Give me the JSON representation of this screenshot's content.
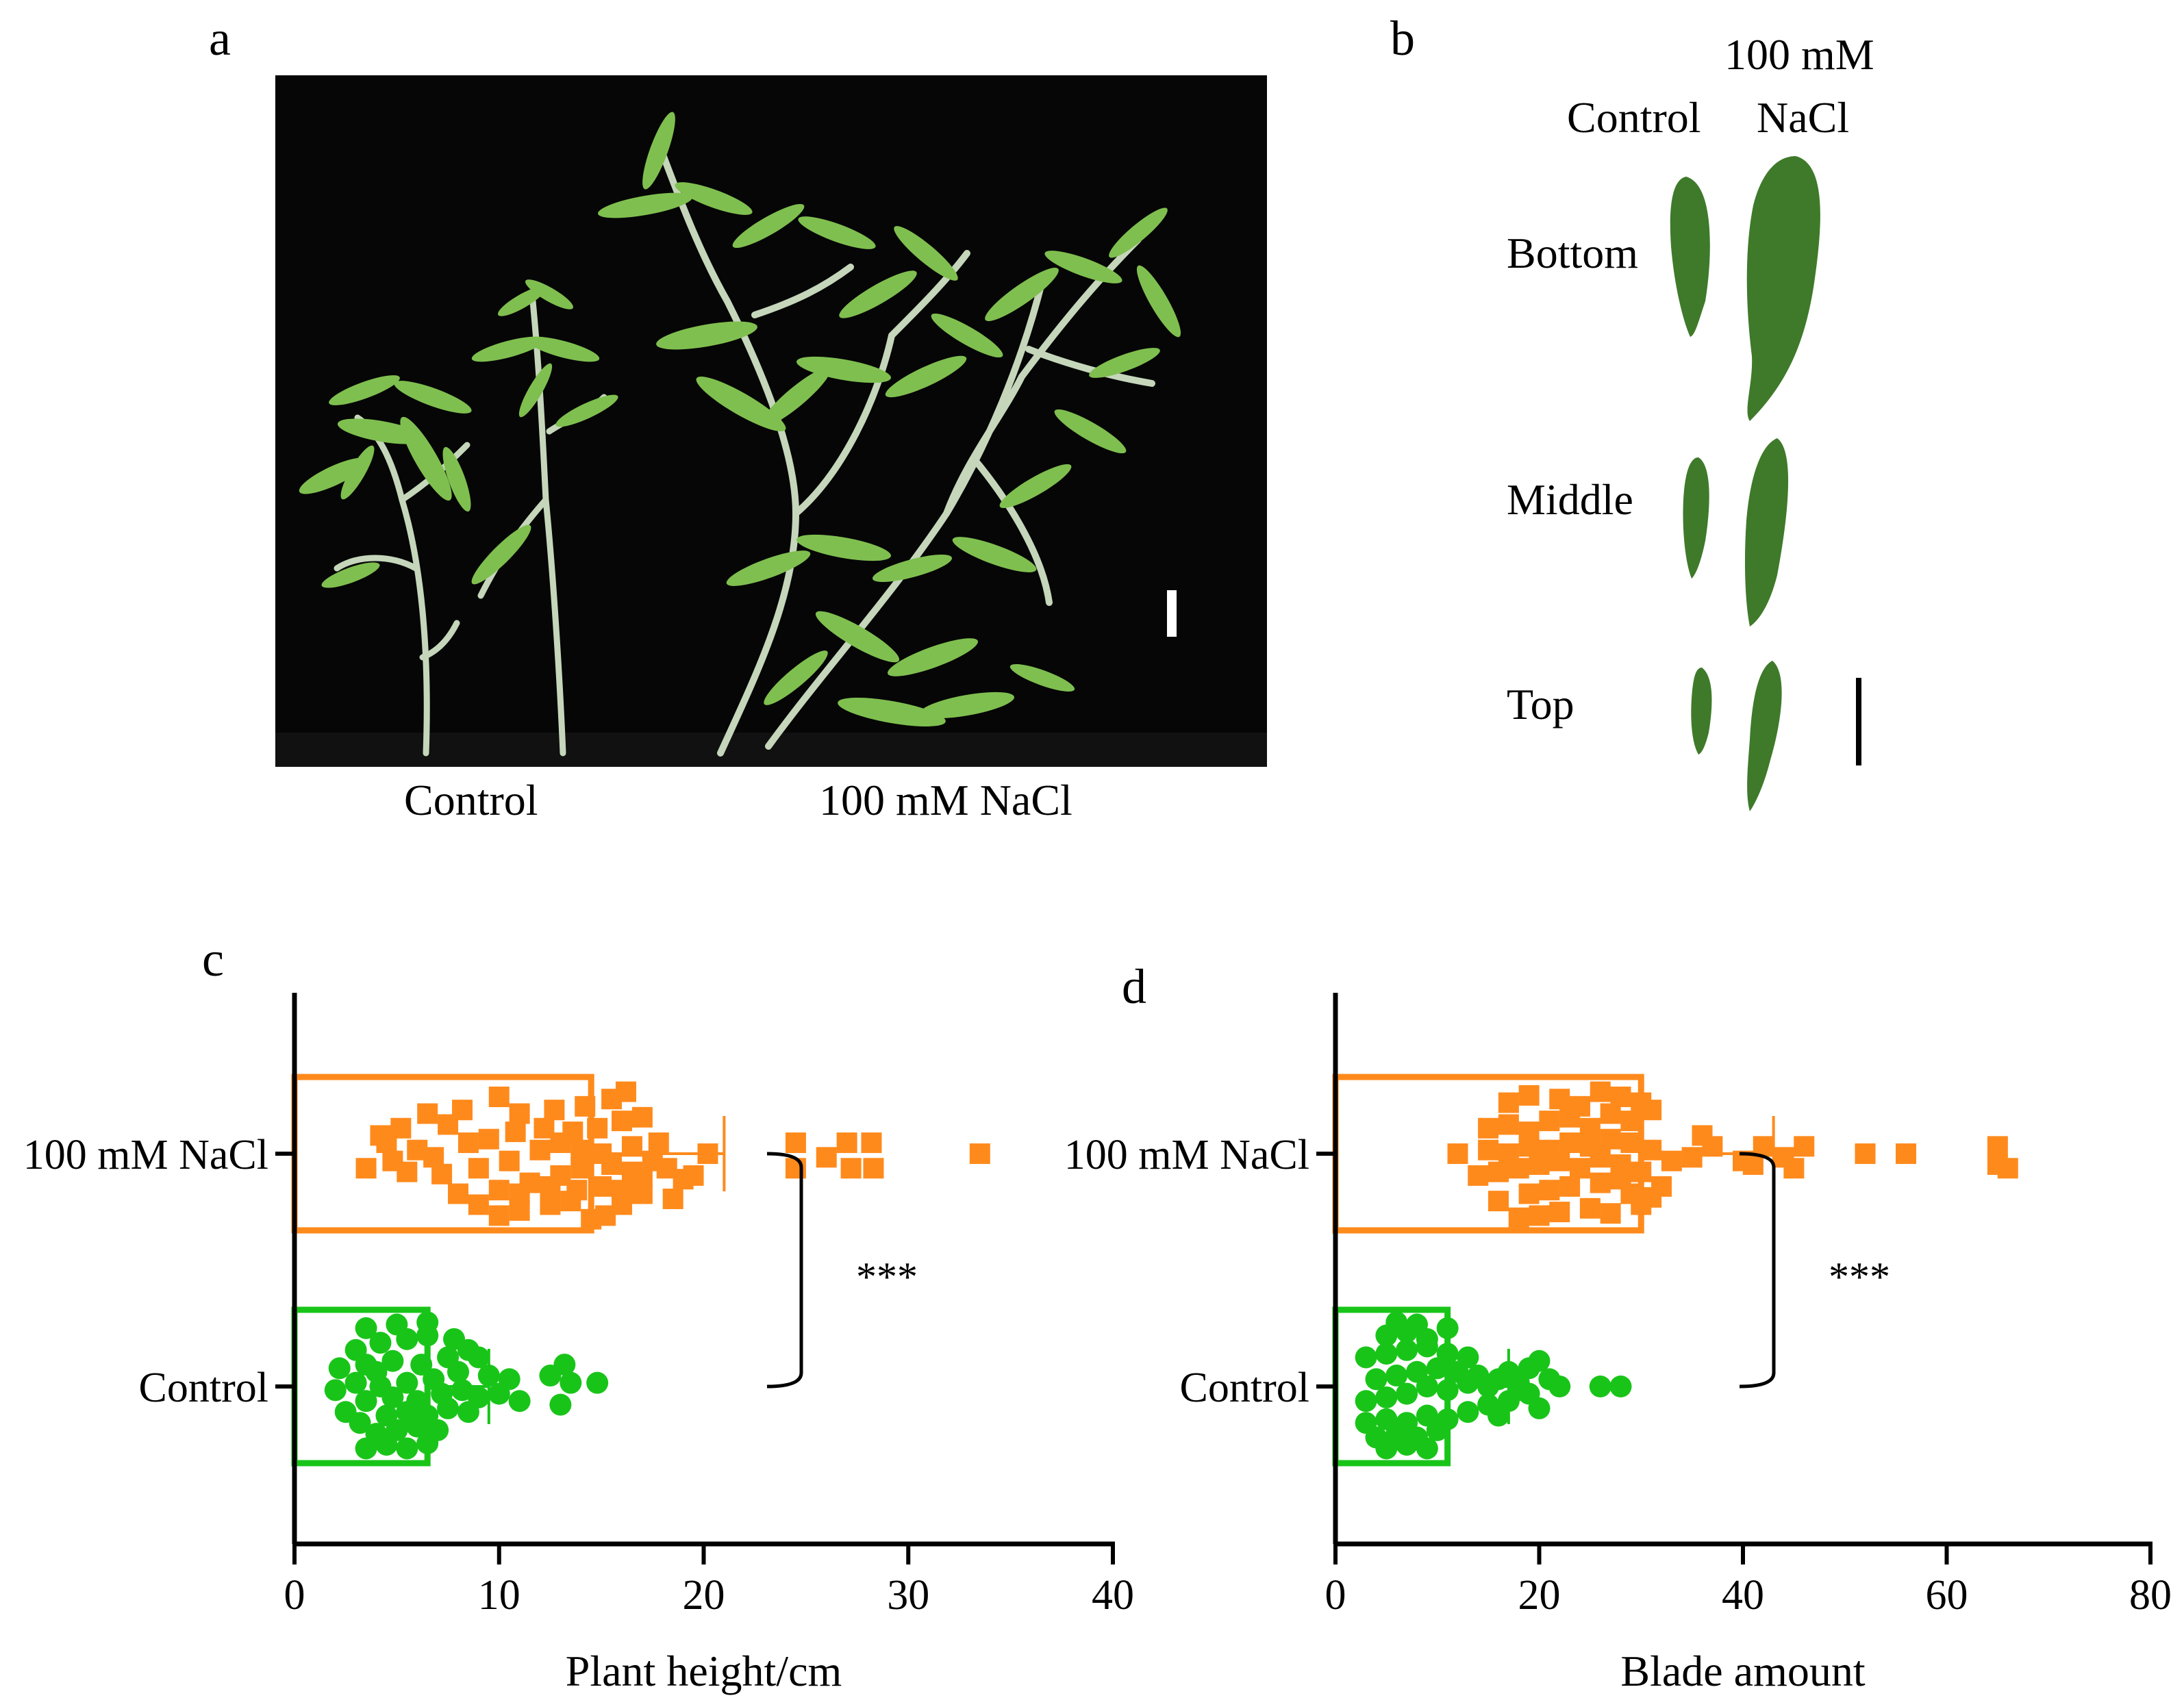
{
  "panels": {
    "a": {
      "letter": "a",
      "x_labels": [
        "Control",
        "100 mM NaCl"
      ]
    },
    "b": {
      "letter": "b",
      "col_labels": {
        "control": "Control",
        "nacl_line1": "100 mM",
        "nacl_line2": "NaCl"
      },
      "row_labels": [
        "Bottom",
        "Middle",
        "Top"
      ]
    },
    "c": {
      "letter": "c",
      "significance": "***"
    },
    "d": {
      "letter": "d",
      "significance": "***"
    }
  },
  "colors": {
    "nacl": "#ff8a1c",
    "control": "#19c419",
    "leaf_dark": "#3f7a2a",
    "stem": "#b9cdb1"
  },
  "chart_data": [
    {
      "type": "bar",
      "orientation": "horizontal",
      "xlabel": "Plant height/cm",
      "xlim": [
        0,
        40
      ],
      "xticks": [
        0,
        10,
        20,
        30,
        40
      ],
      "categories": [
        "100 mM NaCl",
        "Control"
      ],
      "series": [
        {
          "name": "100 mM NaCl",
          "mean": 14.5,
          "sd": 6.5,
          "points": [
            [
              10,
              0.85
            ],
            [
              11,
              0.78
            ],
            [
              12.5,
              0.7
            ],
            [
              13.5,
              0.65
            ],
            [
              14.5,
              0.9
            ],
            [
              15.2,
              0.85
            ],
            [
              16,
              0.7
            ],
            [
              17,
              0.55
            ],
            [
              18.5,
              0.62
            ],
            [
              19,
              0.35
            ],
            [
              11.5,
              0.4
            ],
            [
              13,
              0.3
            ],
            [
              14,
              0.2
            ],
            [
              15.5,
              0.15
            ],
            [
              16.5,
              0.25
            ],
            [
              17.5,
              0.1
            ],
            [
              10.5,
              0.1
            ],
            [
              12,
              -0.05
            ],
            [
              13,
              -0.15
            ],
            [
              14,
              -0.05
            ],
            [
              15,
              0.0
            ],
            [
              16.5,
              -0.1
            ],
            [
              17.8,
              -0.15
            ],
            [
              9.5,
              -0.2
            ],
            [
              10.8,
              -0.3
            ],
            [
              12.2,
              -0.35
            ],
            [
              13.6,
              -0.3
            ],
            [
              14.8,
              -0.35
            ],
            [
              16,
              -0.45
            ],
            [
              17,
              -0.5
            ],
            [
              11,
              -0.55
            ],
            [
              12.7,
              -0.6
            ],
            [
              14.2,
              -0.65
            ],
            [
              15.5,
              -0.75
            ],
            [
              16.2,
              -0.85
            ],
            [
              10,
              -0.78
            ],
            [
              8,
              0.55
            ],
            [
              7.2,
              0.28
            ],
            [
              6.8,
              0.05
            ],
            [
              8.5,
              -0.15
            ],
            [
              7.5,
              -0.4
            ],
            [
              9,
              0.2
            ],
            [
              5.5,
              0.25
            ],
            [
              4.8,
              0.1
            ],
            [
              4.5,
              -0.15
            ],
            [
              6,
              -0.05
            ],
            [
              5.2,
              -0.35
            ],
            [
              6.5,
              -0.55
            ],
            [
              3.5,
              0.2
            ],
            [
              4.2,
              -0.25
            ],
            [
              8.2,
              -0.6
            ],
            [
              9,
              0.7
            ],
            [
              10,
              0.5
            ],
            [
              11,
              0.55
            ],
            [
              12.5,
              0.45
            ],
            [
              13.8,
              0.5
            ],
            [
              15,
              0.45
            ],
            [
              16,
              0.5
            ],
            [
              17,
              0.35
            ],
            [
              18.2,
              0.2
            ],
            [
              19.5,
              0.3
            ],
            [
              20.2,
              0.0
            ],
            [
              24.5,
              0.2
            ],
            [
              24.5,
              -0.15
            ],
            [
              26,
              0.05
            ],
            [
              27.2,
              0.2
            ],
            [
              28.3,
              0.2
            ],
            [
              27,
              -0.15
            ],
            [
              28.2,
              -0.15
            ],
            [
              33.5,
              0.0
            ]
          ]
        },
        {
          "name": "Control",
          "mean": 6.5,
          "sd": 3.0,
          "points": [
            [
              3.5,
              0.85
            ],
            [
              4.5,
              0.8
            ],
            [
              5.5,
              0.85
            ],
            [
              6.5,
              0.78
            ],
            [
              4,
              0.65
            ],
            [
              5,
              0.6
            ],
            [
              6,
              0.55
            ],
            [
              7,
              0.6
            ],
            [
              3.2,
              0.5
            ],
            [
              2.5,
              0.35
            ],
            [
              4.5,
              0.4
            ],
            [
              5.5,
              0.35
            ],
            [
              6.5,
              0.4
            ],
            [
              7.5,
              0.3
            ],
            [
              8.5,
              0.35
            ],
            [
              3.5,
              0.2
            ],
            [
              4.8,
              0.15
            ],
            [
              6,
              0.2
            ],
            [
              7.2,
              0.1
            ],
            [
              8.2,
              0.05
            ],
            [
              9,
              0.15
            ],
            [
              10,
              0.1
            ],
            [
              11,
              0.2
            ],
            [
              2,
              0.05
            ],
            [
              3,
              -0.05
            ],
            [
              4.2,
              0.0
            ],
            [
              5.5,
              -0.05
            ],
            [
              6.8,
              -0.1
            ],
            [
              8,
              -0.2
            ],
            [
              9.5,
              -0.15
            ],
            [
              10.5,
              -0.1
            ],
            [
              2.2,
              -0.25
            ],
            [
              3.5,
              -0.3
            ],
            [
              4.8,
              -0.35
            ],
            [
              6.2,
              -0.3
            ],
            [
              7.5,
              -0.4
            ],
            [
              8.5,
              -0.5
            ],
            [
              3,
              -0.5
            ],
            [
              4.2,
              -0.6
            ],
            [
              5.5,
              -0.65
            ],
            [
              6.5,
              -0.7
            ],
            [
              3.5,
              -0.8
            ],
            [
              5,
              -0.85
            ],
            [
              6.5,
              -0.88
            ],
            [
              13,
              0.25
            ],
            [
              13.5,
              -0.05
            ],
            [
              14.8,
              -0.05
            ],
            [
              13.2,
              -0.3
            ],
            [
              12.5,
              -0.15
            ],
            [
              5.8,
              0.5
            ],
            [
              7.8,
              -0.65
            ],
            [
              4,
              -0.2
            ],
            [
              9,
              -0.4
            ]
          ]
        }
      ]
    },
    {
      "type": "bar",
      "orientation": "horizontal",
      "xlabel": "Blade amount",
      "xlim": [
        0,
        80
      ],
      "xticks": [
        0,
        20,
        40,
        60,
        80
      ],
      "categories": [
        "100 mM NaCl",
        "Control"
      ],
      "series": [
        {
          "name": "100 mM NaCl",
          "mean": 30,
          "sd": 13,
          "points": [
            [
              18,
              0.88
            ],
            [
              20,
              0.85
            ],
            [
              22,
              0.8
            ],
            [
              25,
              0.75
            ],
            [
              27,
              0.82
            ],
            [
              30,
              0.7
            ],
            [
              31,
              0.6
            ],
            [
              16,
              0.65
            ],
            [
              19,
              0.55
            ],
            [
              21,
              0.5
            ],
            [
              23,
              0.45
            ],
            [
              26,
              0.4
            ],
            [
              28,
              0.35
            ],
            [
              29,
              0.55
            ],
            [
              32,
              0.45
            ],
            [
              14,
              0.3
            ],
            [
              16,
              0.25
            ],
            [
              18,
              0.2
            ],
            [
              20,
              0.15
            ],
            [
              22,
              0.1
            ],
            [
              24,
              0.2
            ],
            [
              26,
              0.05
            ],
            [
              28,
              0.15
            ],
            [
              30,
              0.25
            ],
            [
              12,
              0.0
            ],
            [
              15,
              -0.05
            ],
            [
              17,
              0.0
            ],
            [
              19,
              -0.1
            ],
            [
              21,
              -0.05
            ],
            [
              23,
              -0.15
            ],
            [
              25,
              -0.1
            ],
            [
              27,
              -0.2
            ],
            [
              29,
              -0.15
            ],
            [
              31,
              -0.05
            ],
            [
              33,
              0.1
            ],
            [
              35,
              0.05
            ],
            [
              37,
              -0.1
            ],
            [
              15,
              -0.35
            ],
            [
              17,
              -0.4
            ],
            [
              19,
              -0.3
            ],
            [
              21,
              -0.45
            ],
            [
              23,
              -0.5
            ],
            [
              25,
              -0.35
            ],
            [
              27,
              -0.55
            ],
            [
              29,
              -0.45
            ],
            [
              31,
              -0.6
            ],
            [
              17,
              -0.7
            ],
            [
              19,
              -0.8
            ],
            [
              22,
              -0.75
            ],
            [
              24,
              -0.65
            ],
            [
              26,
              -0.85
            ],
            [
              28,
              -0.78
            ],
            [
              30,
              -0.7
            ],
            [
              36,
              -0.25
            ],
            [
              40,
              0.1
            ],
            [
              42,
              -0.1
            ],
            [
              41,
              0.15
            ],
            [
              44,
              0.05
            ],
            [
              46,
              -0.1
            ],
            [
              45,
              0.2
            ],
            [
              52,
              0.0
            ],
            [
              56,
              0.0
            ],
            [
              65,
              0.15
            ],
            [
              66,
              0.2
            ],
            [
              65,
              -0.1
            ]
          ]
        },
        {
          "name": "Control",
          "mean": 11,
          "sd": 6,
          "points": [
            [
              5,
              0.85
            ],
            [
              7,
              0.8
            ],
            [
              9,
              0.85
            ],
            [
              4,
              0.7
            ],
            [
              6,
              0.65
            ],
            [
              8,
              0.7
            ],
            [
              10,
              0.6
            ],
            [
              3,
              0.5
            ],
            [
              5,
              0.45
            ],
            [
              7,
              0.5
            ],
            [
              9,
              0.4
            ],
            [
              11,
              0.45
            ],
            [
              13,
              0.35
            ],
            [
              15,
              0.25
            ],
            [
              17,
              0.2
            ],
            [
              19,
              0.1
            ],
            [
              20,
              0.3
            ],
            [
              3,
              0.2
            ],
            [
              5,
              0.15
            ],
            [
              7,
              0.1
            ],
            [
              9,
              0.0
            ],
            [
              11,
              0.05
            ],
            [
              13,
              -0.05
            ],
            [
              15,
              0.0
            ],
            [
              16,
              -0.1
            ],
            [
              18,
              -0.05
            ],
            [
              4,
              -0.1
            ],
            [
              6,
              -0.15
            ],
            [
              8,
              -0.2
            ],
            [
              10,
              -0.25
            ],
            [
              12,
              -0.2
            ],
            [
              14,
              -0.15
            ],
            [
              17,
              -0.2
            ],
            [
              19,
              -0.25
            ],
            [
              21,
              -0.1
            ],
            [
              22,
              0.0
            ],
            [
              20,
              -0.35
            ],
            [
              3,
              -0.4
            ],
            [
              5,
              -0.45
            ],
            [
              7,
              -0.5
            ],
            [
              9,
              -0.55
            ],
            [
              11,
              -0.45
            ],
            [
              13,
              -0.4
            ],
            [
              5,
              -0.7
            ],
            [
              7,
              -0.75
            ],
            [
              9,
              -0.65
            ],
            [
              11,
              -0.8
            ],
            [
              6,
              -0.88
            ],
            [
              8,
              -0.85
            ],
            [
              26,
              0.0
            ],
            [
              28,
              0.0
            ],
            [
              18,
              0.05
            ],
            [
              16,
              0.4
            ]
          ]
        }
      ]
    }
  ]
}
